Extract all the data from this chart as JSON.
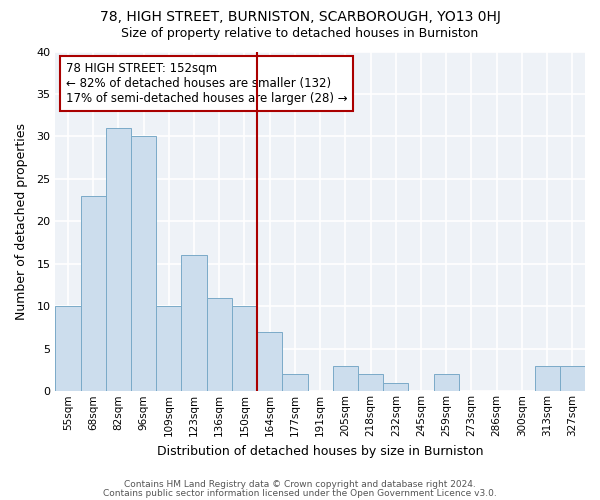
{
  "title": "78, HIGH STREET, BURNISTON, SCARBOROUGH, YO13 0HJ",
  "subtitle": "Size of property relative to detached houses in Burniston",
  "xlabel": "Distribution of detached houses by size in Burniston",
  "ylabel": "Number of detached properties",
  "footer_line1": "Contains HM Land Registry data © Crown copyright and database right 2024.",
  "footer_line2": "Contains public sector information licensed under the Open Government Licence v3.0.",
  "bin_labels": [
    "55sqm",
    "68sqm",
    "82sqm",
    "96sqm",
    "109sqm",
    "123sqm",
    "136sqm",
    "150sqm",
    "164sqm",
    "177sqm",
    "191sqm",
    "205sqm",
    "218sqm",
    "232sqm",
    "245sqm",
    "259sqm",
    "273sqm",
    "286sqm",
    "300sqm",
    "313sqm",
    "327sqm"
  ],
  "bar_values": [
    10,
    23,
    31,
    30,
    10,
    16,
    11,
    10,
    7,
    2,
    0,
    3,
    2,
    1,
    0,
    2,
    0,
    0,
    0,
    3,
    3
  ],
  "bar_color": "#ccdded",
  "bar_edge_color": "#7aaac8",
  "vline_x_index": 7.5,
  "vline_color": "#aa0000",
  "annotation_title": "78 HIGH STREET: 152sqm",
  "annotation_line1": "← 82% of detached houses are smaller (132)",
  "annotation_line2": "17% of semi-detached houses are larger (28) →",
  "annotation_box_edge": "#aa0000",
  "ylim": [
    0,
    40
  ],
  "yticks": [
    0,
    5,
    10,
    15,
    20,
    25,
    30,
    35,
    40
  ],
  "background_color": "#eef2f7",
  "grid_color": "#ffffff",
  "fig_background": "#ffffff"
}
